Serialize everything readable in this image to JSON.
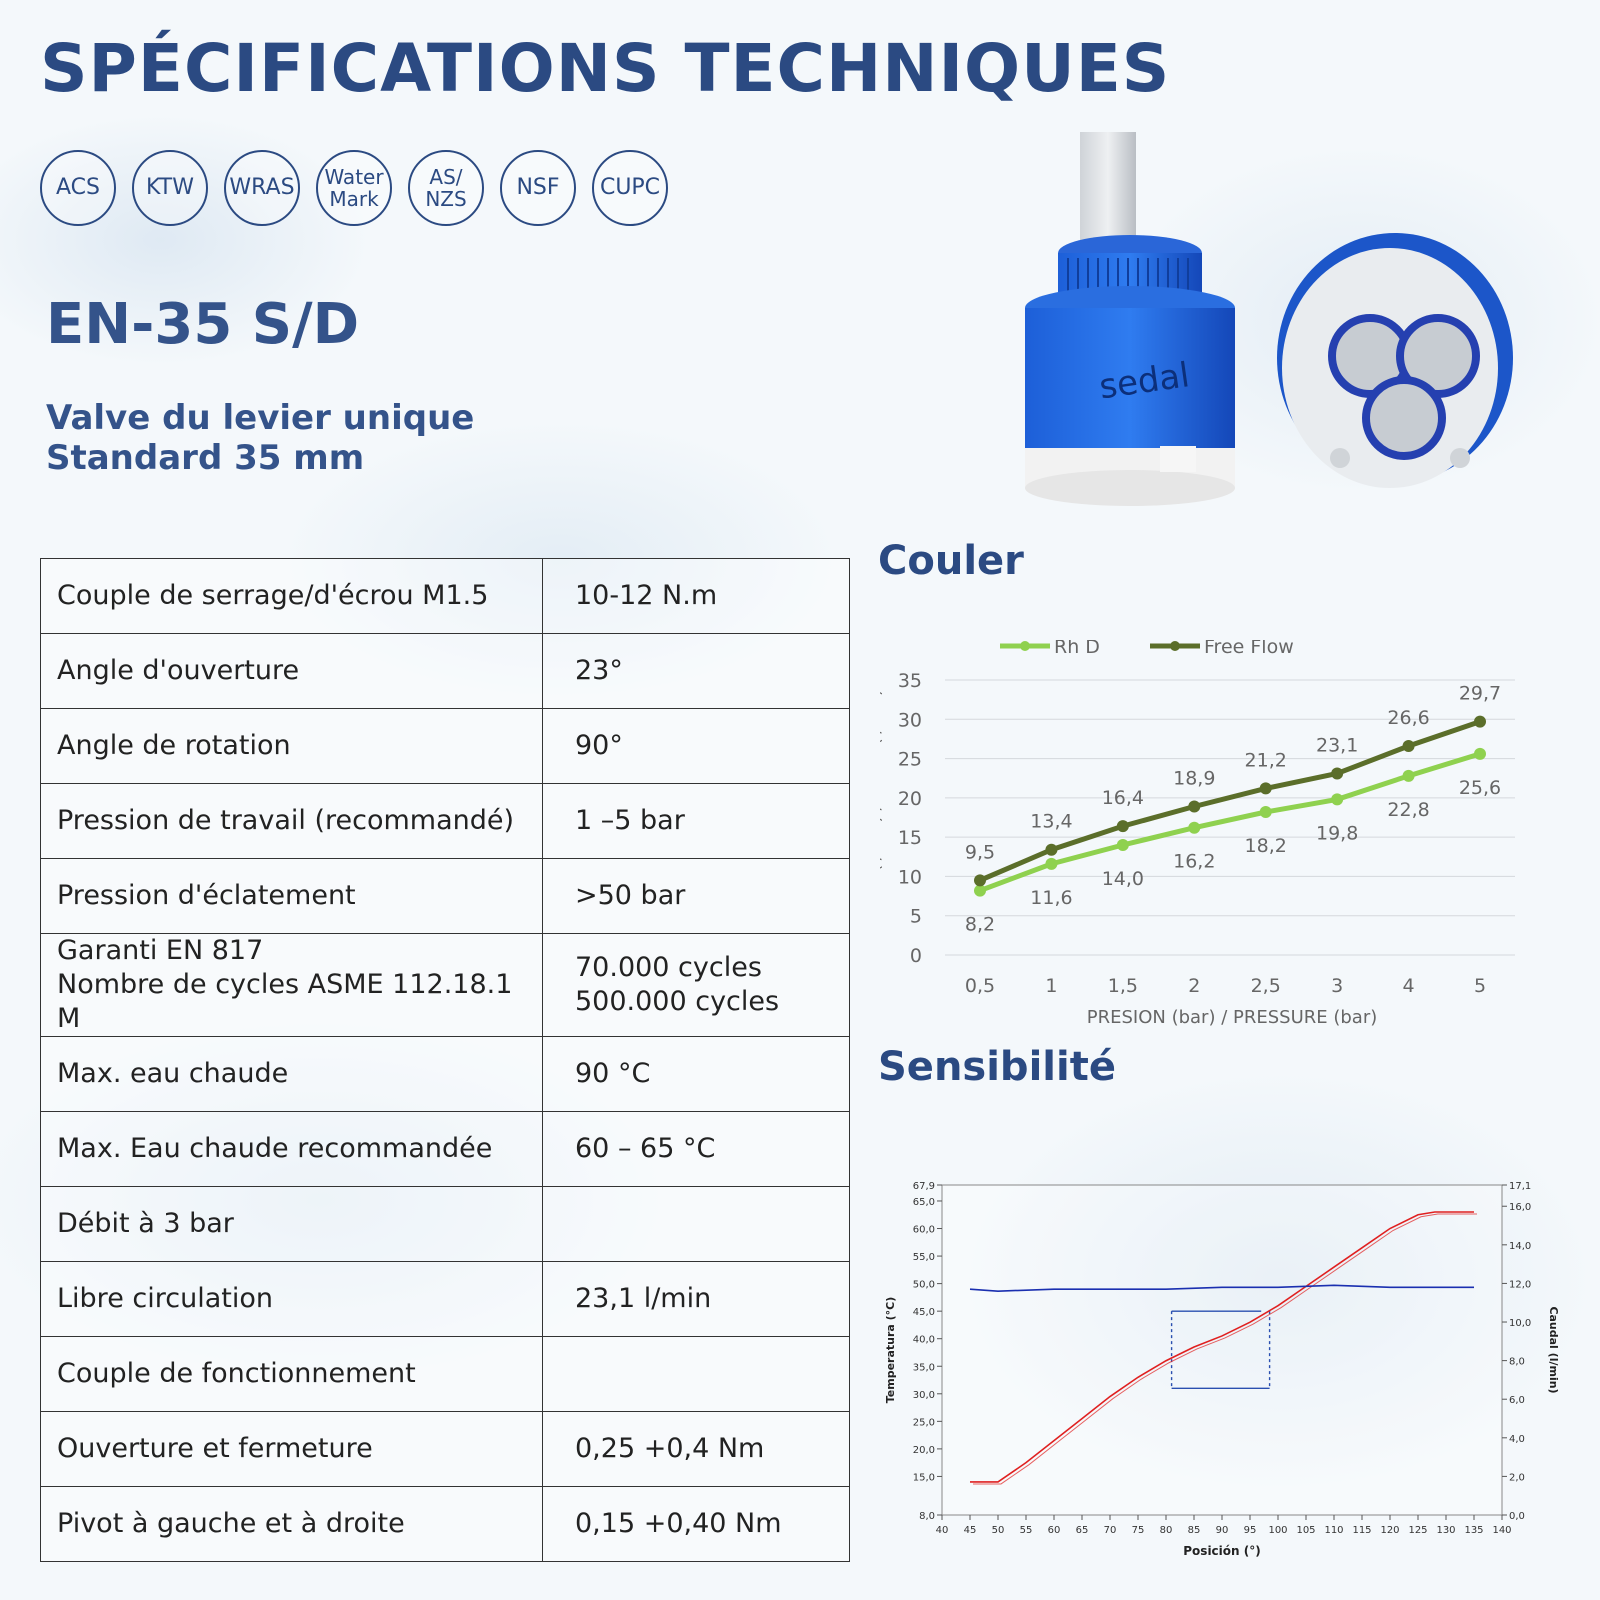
{
  "title": "SPÉCIFICATIONS TECHNIQUES",
  "certifications": [
    {
      "label": "ACS"
    },
    {
      "label": "KTW"
    },
    {
      "label": "WRAS"
    },
    {
      "label": "Water\nMark"
    },
    {
      "label": "AS/\nNZS"
    },
    {
      "label": "NSF"
    },
    {
      "label": "CUPC"
    }
  ],
  "product": {
    "model": "EN-35 S/D",
    "subtitle_line1": "Valve du levier unique",
    "subtitle_line2": "Standard 35 mm",
    "brand": "sedal"
  },
  "specs": [
    {
      "key": "Couple de serrage/d'écrou M1.5",
      "value": "10-12 N.m"
    },
    {
      "key": "Angle d'ouverture",
      "value": "23°"
    },
    {
      "key": "Angle de rotation",
      "value": "90°"
    },
    {
      "key": "Pression de travail (recommandé)",
      "value": "1 –5 bar"
    },
    {
      "key": "Pression d'éclatement",
      "value": ">50 bar"
    },
    {
      "key": "Garanti EN 817\nNombre de cycles ASME 112.18.1 M",
      "value": "70.000 cycles\n500.000 cycles"
    },
    {
      "key": "Max. eau chaude",
      "value": "90 °C"
    },
    {
      "key": "Max. Eau chaude recommandée",
      "value": "60 – 65 °C"
    },
    {
      "key": "Débit à 3 bar",
      "value": ""
    },
    {
      "key": "Libre circulation",
      "value": "23,1 l/min"
    },
    {
      "key": "Couple de fonctionnement",
      "value": ""
    },
    {
      "key": "Ouverture et fermeture",
      "value": "0,25  +0,4 Nm"
    },
    {
      "key": "Pivot à gauche et à droite",
      "value": "0,15  +0,40 Nm"
    }
  ],
  "sections": {
    "flow": "Couler",
    "sensitivity": "Sensibilité"
  },
  "chart_data": [
    {
      "type": "line",
      "title": "Couler",
      "categories": [
        "0,5",
        "1",
        "1,5",
        "2",
        "2,5",
        "3",
        "4",
        "5"
      ],
      "series": [
        {
          "name": "Rh D",
          "color": "#8fd14f",
          "values": [
            8.2,
            11.6,
            14.0,
            16.2,
            18.2,
            19.8,
            22.8,
            25.6
          ],
          "labels": [
            "8,2",
            "11,6",
            "14,0",
            "16,2",
            "18,2",
            "19,8",
            "22,8",
            "25,6"
          ]
        },
        {
          "name": "Free Flow",
          "color": "#5b6e2a",
          "values": [
            9.5,
            13.4,
            16.4,
            18.9,
            21.2,
            23.1,
            26.6,
            29.7
          ],
          "labels": [
            "9,5",
            "13,4",
            "16,4",
            "18,9",
            "21,2",
            "23,1",
            "26,6",
            "29,7"
          ]
        }
      ],
      "xlabel": "PRESION (bar)  /  PRESSURE (bar)",
      "ylabel": "CAUDAL (l/min) / FLOW (l/min)",
      "ylim": [
        0,
        35
      ],
      "yticks": [
        "0",
        "5",
        "10",
        "15",
        "20",
        "25",
        "30",
        "35"
      ],
      "grid": true,
      "legend": "top"
    },
    {
      "type": "line",
      "title": "Sensibilité",
      "xlabel": "Posición (°)",
      "ylabel_left": "Temperatura (°C)",
      "ylabel_right": "Caudal (l/min)",
      "xticks": [
        "40",
        "45",
        "50",
        "55",
        "60",
        "65",
        "70",
        "75",
        "80",
        "85",
        "90",
        "95",
        "100",
        "105",
        "110",
        "115",
        "120",
        "125",
        "130",
        "135",
        "140"
      ],
      "yticks_left": [
        "8,0",
        "15,0",
        "20,0",
        "25,0",
        "30,0",
        "35,0",
        "40,0",
        "45,0",
        "50,0",
        "55,0",
        "60,0",
        "65,0",
        "67,9"
      ],
      "yticks_right": [
        "0,0",
        "2,0",
        "4,0",
        "6,0",
        "8,0",
        "10,0",
        "12,0",
        "14,0",
        "16,0",
        "17,1"
      ],
      "ylim_left": [
        8.0,
        67.9
      ],
      "ylim_right": [
        0.0,
        17.1
      ],
      "xlim": [
        40,
        140
      ],
      "series": [
        {
          "name": "Temperatura",
          "color": "#e02020",
          "axis": "left",
          "x": [
            45,
            50,
            55,
            60,
            65,
            70,
            75,
            80,
            85,
            90,
            95,
            100,
            105,
            110,
            115,
            120,
            125,
            128,
            135
          ],
          "values": [
            14.0,
            14.0,
            17.5,
            21.5,
            25.5,
            29.5,
            33.0,
            36.0,
            38.5,
            40.5,
            43.0,
            46.0,
            49.5,
            53.0,
            56.5,
            60.0,
            62.5,
            63.0,
            63.0
          ]
        },
        {
          "name": "Caudal",
          "color": "#1a2fb0",
          "axis": "right",
          "x": [
            45,
            50,
            60,
            70,
            80,
            90,
            100,
            110,
            120,
            130,
            135
          ],
          "values": [
            11.7,
            11.6,
            11.7,
            11.7,
            11.7,
            11.8,
            11.8,
            11.9,
            11.8,
            11.8,
            11.8
          ]
        }
      ]
    }
  ]
}
